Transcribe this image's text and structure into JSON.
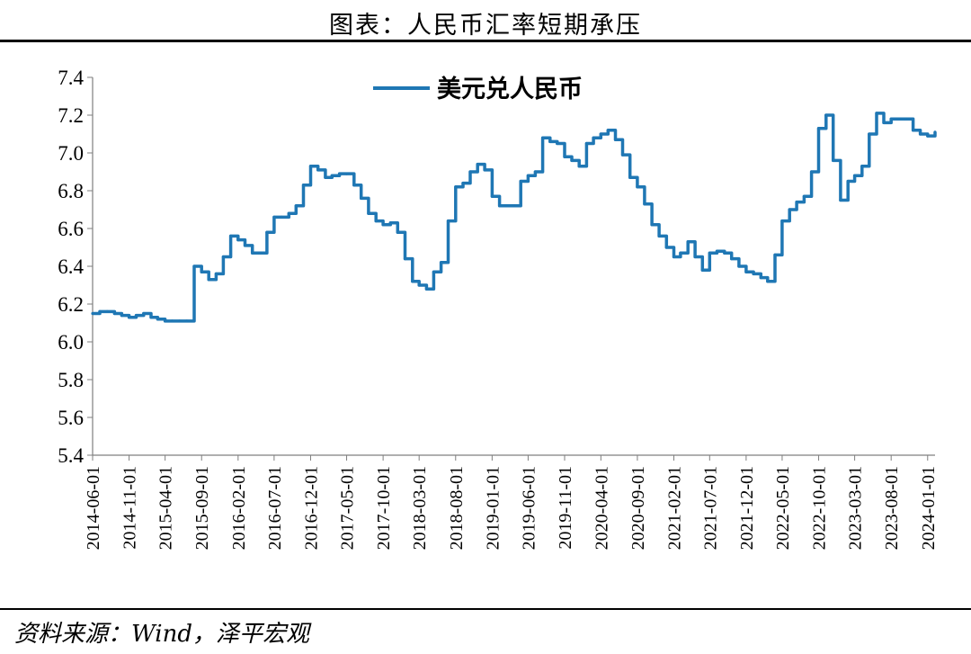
{
  "title": "图表：人民币汇率短期承压",
  "source": "资料来源：Wind，泽平宏观",
  "chart_data": {
    "type": "line",
    "title": "图表：人民币汇率短期承压",
    "ylim": [
      5.4,
      7.4
    ],
    "yticks": [
      "5.4",
      "5.6",
      "5.8",
      "6.0",
      "6.2",
      "6.4",
      "6.6",
      "6.8",
      "7.0",
      "7.2",
      "7.4"
    ],
    "xticks": [
      "2014-06-01",
      "2014-11-01",
      "2015-04-01",
      "2015-09-01",
      "2016-02-01",
      "2016-07-01",
      "2016-12-01",
      "2017-05-01",
      "2017-10-01",
      "2018-03-01",
      "2018-08-01",
      "2019-01-01",
      "2019-06-01",
      "2019-11-01",
      "2020-04-01",
      "2020-09-01",
      "2021-02-01",
      "2021-07-01",
      "2021-12-01",
      "2022-05-01",
      "2022-10-01",
      "2023-03-01",
      "2023-08-01",
      "2024-01-01"
    ],
    "legend": "top-center",
    "grid": false,
    "series": [
      {
        "name": "美元兑人民币",
        "color": "#1f77b4",
        "x": [
          "2014-06",
          "2014-07",
          "2014-08",
          "2014-09",
          "2014-10",
          "2014-11",
          "2014-12",
          "2015-01",
          "2015-02",
          "2015-03",
          "2015-04",
          "2015-05",
          "2015-06",
          "2015-07",
          "2015-08",
          "2015-09",
          "2015-10",
          "2015-11",
          "2015-12",
          "2016-01",
          "2016-02",
          "2016-03",
          "2016-04",
          "2016-05",
          "2016-06",
          "2016-07",
          "2016-08",
          "2016-09",
          "2016-10",
          "2016-11",
          "2016-12",
          "2017-01",
          "2017-02",
          "2017-03",
          "2017-04",
          "2017-05",
          "2017-06",
          "2017-07",
          "2017-08",
          "2017-09",
          "2017-10",
          "2017-11",
          "2017-12",
          "2018-01",
          "2018-02",
          "2018-03",
          "2018-04",
          "2018-05",
          "2018-06",
          "2018-07",
          "2018-08",
          "2018-09",
          "2018-10",
          "2018-11",
          "2018-12",
          "2019-01",
          "2019-02",
          "2019-03",
          "2019-04",
          "2019-05",
          "2019-06",
          "2019-07",
          "2019-08",
          "2019-09",
          "2019-10",
          "2019-11",
          "2019-12",
          "2020-01",
          "2020-02",
          "2020-03",
          "2020-04",
          "2020-05",
          "2020-06",
          "2020-07",
          "2020-08",
          "2020-09",
          "2020-10",
          "2020-11",
          "2020-12",
          "2021-01",
          "2021-02",
          "2021-03",
          "2021-04",
          "2021-05",
          "2021-06",
          "2021-07",
          "2021-08",
          "2021-09",
          "2021-10",
          "2021-11",
          "2021-12",
          "2022-01",
          "2022-02",
          "2022-03",
          "2022-04",
          "2022-05",
          "2022-06",
          "2022-07",
          "2022-08",
          "2022-09",
          "2022-10",
          "2022-11",
          "2022-12",
          "2023-01",
          "2023-02",
          "2023-03",
          "2023-04",
          "2023-05",
          "2023-06",
          "2023-07",
          "2023-08",
          "2023-09",
          "2023-10",
          "2023-11",
          "2023-12",
          "2024-01",
          "2024-02"
        ],
        "values": [
          6.15,
          6.16,
          6.16,
          6.15,
          6.14,
          6.13,
          6.14,
          6.15,
          6.13,
          6.12,
          6.11,
          6.11,
          6.11,
          6.11,
          6.4,
          6.37,
          6.33,
          6.36,
          6.45,
          6.56,
          6.54,
          6.51,
          6.47,
          6.47,
          6.58,
          6.66,
          6.66,
          6.68,
          6.72,
          6.83,
          6.93,
          6.91,
          6.87,
          6.88,
          6.89,
          6.89,
          6.83,
          6.76,
          6.68,
          6.64,
          6.62,
          6.63,
          6.58,
          6.44,
          6.32,
          6.3,
          6.28,
          6.37,
          6.42,
          6.64,
          6.82,
          6.84,
          6.9,
          6.94,
          6.91,
          6.77,
          6.72,
          6.72,
          6.72,
          6.85,
          6.88,
          6.9,
          7.08,
          7.06,
          7.05,
          6.98,
          6.96,
          6.93,
          7.05,
          7.08,
          7.1,
          7.12,
          7.07,
          6.99,
          6.87,
          6.82,
          6.73,
          6.62,
          6.56,
          6.5,
          6.45,
          6.47,
          6.53,
          6.45,
          6.38,
          6.47,
          6.48,
          6.47,
          6.44,
          6.4,
          6.37,
          6.36,
          6.34,
          6.32,
          6.46,
          6.64,
          6.7,
          6.74,
          6.77,
          6.9,
          7.13,
          7.2,
          6.96,
          6.75,
          6.85,
          6.88,
          6.93,
          7.1,
          7.21,
          7.16,
          7.18,
          7.18,
          7.18,
          7.12,
          7.1,
          7.09,
          7.11
        ]
      }
    ]
  }
}
